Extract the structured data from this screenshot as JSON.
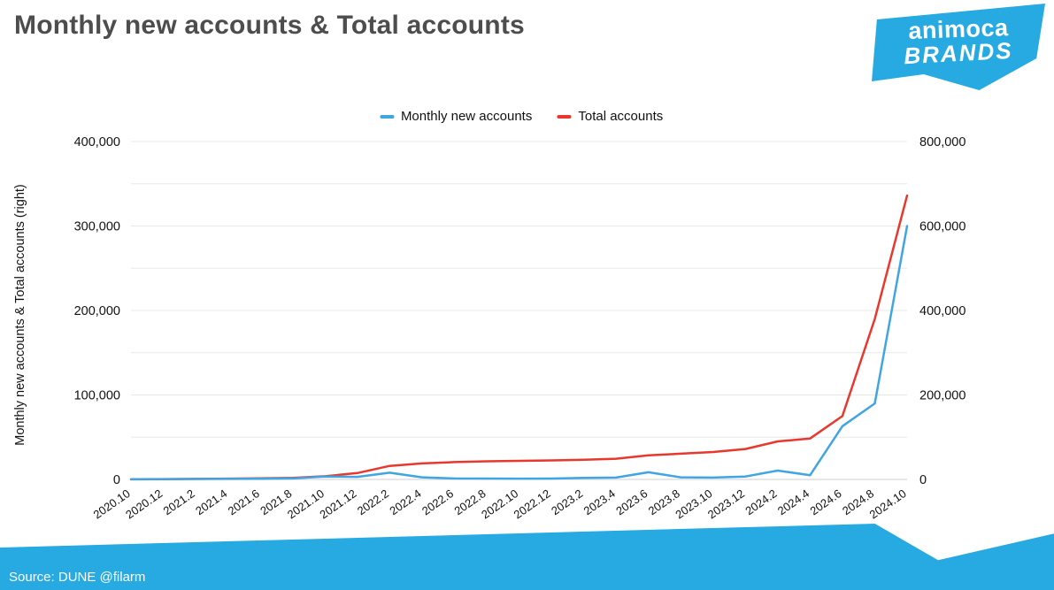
{
  "title": "Monthly new accounts & Total accounts",
  "logo": {
    "line1": "animoca",
    "line2": "BRANDS"
  },
  "legend": [
    {
      "label": "Monthly new accounts",
      "color": "#41a5e1"
    },
    {
      "label": "Total accounts",
      "color": "#e8382d"
    }
  ],
  "y_axis_label": "Monthly new accounts & Total accounts (right)",
  "source": "Source: DUNE @filarm",
  "colors": {
    "brand_blue": "#27aae1",
    "series_blue": "#41a5e1",
    "series_red": "#e8382d",
    "title_gray": "#4d4d4d",
    "grid": "#e8e8e8",
    "baseline": "#cfcfcf"
  },
  "chart_data": {
    "type": "line",
    "title": "Monthly new accounts & Total accounts",
    "legend_position": "top",
    "grid": true,
    "categories": [
      "2020.10",
      "2020.12",
      "2021.2",
      "2021.4",
      "2021.6",
      "2021.8",
      "2021.10",
      "2021.12",
      "2022.2",
      "2022.4",
      "2022.6",
      "2022.8",
      "2022.10",
      "2022.12",
      "2023.2",
      "2023.4",
      "2023.6",
      "2023.8",
      "2023.10",
      "2023.12",
      "2024.2",
      "2024.4",
      "2024.6",
      "2024.8",
      "2024.10"
    ],
    "left_axis": {
      "min": 0,
      "max": 400000,
      "grid_step": 50000,
      "label_step": 100000
    },
    "right_axis": {
      "min": 0,
      "max": 800000,
      "label_step": 200000
    },
    "series": [
      {
        "name": "Total accounts",
        "axis": "right",
        "color": "#e8382d",
        "values": [
          300,
          700,
          1200,
          1800,
          2600,
          3800,
          7500,
          15000,
          32000,
          38000,
          41000,
          43000,
          44000,
          45000,
          46500,
          49000,
          57000,
          61000,
          65000,
          72000,
          90000,
          97000,
          150000,
          380000,
          672000
        ]
      },
      {
        "name": "Monthly new accounts",
        "axis": "left",
        "color": "#41a5e1",
        "values": [
          200,
          400,
          500,
          600,
          700,
          1200,
          3500,
          3000,
          8000,
          2500,
          1200,
          1000,
          900,
          1000,
          1800,
          2200,
          8500,
          2500,
          2200,
          3500,
          10500,
          5000,
          63000,
          90000,
          300000
        ]
      }
    ]
  }
}
